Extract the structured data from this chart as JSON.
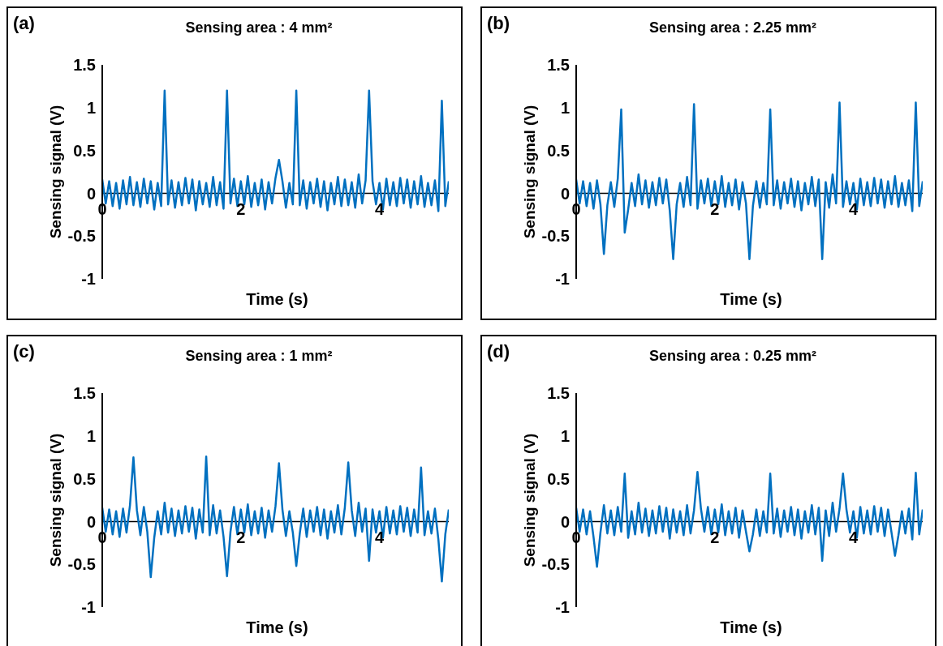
{
  "chart_data": [
    {
      "type": "line",
      "title": "Sensing area : 4 mm²",
      "xlabel": "Time (s)",
      "ylabel": "Sensing signal (V)",
      "annotations": [
        "(a)"
      ],
      "color": "#0070c0",
      "marker": "none",
      "line_style": "solid",
      "xlim": [
        0,
        5
      ],
      "xticks": [
        0,
        2,
        4
      ],
      "ylim": [
        -1,
        1.5
      ],
      "yticks": [
        -1,
        -0.5,
        0,
        0.5,
        1,
        1.5
      ],
      "x": [
        0,
        0.05,
        0.1,
        0.15,
        0.2,
        0.25,
        0.3,
        0.35,
        0.4,
        0.45,
        0.5,
        0.55,
        0.6,
        0.65,
        0.7,
        0.75,
        0.8,
        0.85,
        0.9,
        0.95,
        1,
        1.05,
        1.1,
        1.15,
        1.2,
        1.25,
        1.3,
        1.35,
        1.4,
        1.45,
        1.5,
        1.55,
        1.6,
        1.65,
        1.7,
        1.75,
        1.8,
        1.85,
        1.9,
        1.95,
        2,
        2.05,
        2.1,
        2.15,
        2.2,
        2.25,
        2.3,
        2.35,
        2.4,
        2.45,
        2.5,
        2.55,
        2.6,
        2.65,
        2.7,
        2.75,
        2.8,
        2.85,
        2.9,
        2.95,
        3,
        3.05,
        3.1,
        3.15,
        3.2,
        3.25,
        3.3,
        3.35,
        3.4,
        3.45,
        3.5,
        3.55,
        3.6,
        3.65,
        3.7,
        3.75,
        3.8,
        3.85,
        3.9,
        3.95,
        4,
        4.05,
        4.1,
        4.15,
        4.2,
        4.25,
        4.3,
        4.35,
        4.4,
        4.45,
        4.5,
        4.55,
        4.6,
        4.65,
        4.7,
        4.75,
        4.8,
        4.85,
        4.9,
        4.95,
        5
      ],
      "values": [
        0.16,
        -0.12,
        0.14,
        -0.15,
        0.12,
        -0.18,
        0.15,
        -0.13,
        0.19,
        -0.14,
        0.13,
        -0.16,
        0.17,
        -0.12,
        0.14,
        -0.19,
        0.12,
        -0.15,
        1.2,
        -0.13,
        0.15,
        -0.17,
        0.13,
        -0.14,
        0.18,
        -0.12,
        0.16,
        -0.2,
        0.14,
        -0.13,
        0.12,
        -0.16,
        0.19,
        -0.14,
        0.13,
        -0.18,
        1.2,
        -0.12,
        0.17,
        -0.15,
        0.14,
        -0.13,
        0.2,
        -0.16,
        0.12,
        -0.14,
        0.16,
        -0.19,
        0.13,
        -0.12,
        0.18,
        0.39,
        0.14,
        -0.17,
        0.12,
        -0.13,
        1.2,
        -0.14,
        0.15,
        -0.18,
        0.13,
        -0.12,
        0.17,
        -0.16,
        0.14,
        -0.2,
        0.12,
        -0.13,
        0.19,
        -0.15,
        0.16,
        -0.14,
        0.13,
        -0.17,
        0.22,
        -0.12,
        0.15,
        1.2,
        0.14,
        -0.13,
        0.12,
        -0.19,
        0.17,
        -0.14,
        0.13,
        -0.15,
        0.18,
        -0.12,
        0.16,
        -0.17,
        0.14,
        -0.13,
        0.2,
        -0.16,
        0.12,
        -0.14,
        0.15,
        -0.21,
        1.08,
        -0.15,
        0.14
      ]
    },
    {
      "type": "line",
      "title": "Sensing area : 2.25 mm²",
      "xlabel": "Time (s)",
      "ylabel": "Sensing signal (V)",
      "annotations": [
        "(b)"
      ],
      "color": "#0070c0",
      "marker": "none",
      "line_style": "solid",
      "xlim": [
        0,
        5
      ],
      "xticks": [
        0,
        2,
        4
      ],
      "ylim": [
        -1,
        1.5
      ],
      "yticks": [
        -1,
        -0.5,
        0,
        0.5,
        1,
        1.5
      ],
      "x": [
        0,
        0.05,
        0.1,
        0.15,
        0.2,
        0.25,
        0.3,
        0.35,
        0.4,
        0.45,
        0.5,
        0.55,
        0.6,
        0.65,
        0.7,
        0.75,
        0.8,
        0.85,
        0.9,
        0.95,
        1,
        1.05,
        1.1,
        1.15,
        1.2,
        1.25,
        1.3,
        1.35,
        1.4,
        1.45,
        1.5,
        1.55,
        1.6,
        1.65,
        1.7,
        1.75,
        1.8,
        1.85,
        1.9,
        1.95,
        2,
        2.05,
        2.1,
        2.15,
        2.2,
        2.25,
        2.3,
        2.35,
        2.4,
        2.45,
        2.5,
        2.55,
        2.6,
        2.65,
        2.7,
        2.75,
        2.8,
        2.85,
        2.9,
        2.95,
        3,
        3.05,
        3.1,
        3.15,
        3.2,
        3.25,
        3.3,
        3.35,
        3.4,
        3.45,
        3.5,
        3.55,
        3.6,
        3.65,
        3.7,
        3.75,
        3.8,
        3.85,
        3.9,
        3.95,
        4,
        4.05,
        4.1,
        4.15,
        4.2,
        4.25,
        4.3,
        4.35,
        4.4,
        4.45,
        4.5,
        4.55,
        4.6,
        4.65,
        4.7,
        4.75,
        4.8,
        4.85,
        4.9,
        4.95,
        5
      ],
      "values": [
        0.16,
        -0.12,
        0.14,
        -0.15,
        0.12,
        -0.18,
        0.15,
        -0.13,
        -0.71,
        -0.14,
        0.13,
        -0.16,
        0.17,
        0.98,
        -0.46,
        -0.19,
        0.12,
        -0.15,
        0.22,
        -0.13,
        0.15,
        -0.17,
        0.13,
        -0.14,
        0.18,
        -0.12,
        0.16,
        -0.2,
        -0.77,
        -0.13,
        0.12,
        -0.16,
        0.19,
        -0.14,
        1.04,
        -0.18,
        0.15,
        -0.12,
        0.17,
        -0.15,
        0.14,
        -0.13,
        0.2,
        -0.16,
        0.12,
        -0.14,
        0.16,
        -0.19,
        0.13,
        -0.12,
        -0.77,
        -0.15,
        0.14,
        -0.17,
        0.12,
        -0.13,
        0.98,
        -0.14,
        0.15,
        -0.18,
        0.13,
        -0.12,
        0.17,
        -0.16,
        0.14,
        -0.2,
        0.12,
        -0.13,
        0.19,
        -0.15,
        0.16,
        -0.77,
        0.13,
        -0.17,
        0.22,
        -0.12,
        1.06,
        -0.16,
        0.14,
        -0.13,
        0.12,
        -0.19,
        0.17,
        -0.14,
        0.13,
        -0.15,
        0.18,
        -0.12,
        0.16,
        -0.17,
        0.14,
        -0.13,
        0.2,
        -0.16,
        0.12,
        -0.14,
        0.15,
        -0.21,
        1.06,
        -0.15,
        0.14
      ]
    },
    {
      "type": "line",
      "title": "Sensing area : 1 mm²",
      "xlabel": "Time (s)",
      "ylabel": "Sensing signal (V)",
      "annotations": [
        "(c)"
      ],
      "color": "#0070c0",
      "marker": "none",
      "line_style": "solid",
      "xlim": [
        0,
        5
      ],
      "xticks": [
        0,
        2,
        4
      ],
      "ylim": [
        -1,
        1.5
      ],
      "yticks": [
        -1,
        -0.5,
        0,
        0.5,
        1,
        1.5
      ],
      "x": [
        0,
        0.05,
        0.1,
        0.15,
        0.2,
        0.25,
        0.3,
        0.35,
        0.4,
        0.45,
        0.5,
        0.55,
        0.6,
        0.65,
        0.7,
        0.75,
        0.8,
        0.85,
        0.9,
        0.95,
        1,
        1.05,
        1.1,
        1.15,
        1.2,
        1.25,
        1.3,
        1.35,
        1.4,
        1.45,
        1.5,
        1.55,
        1.6,
        1.65,
        1.7,
        1.75,
        1.8,
        1.85,
        1.9,
        1.95,
        2,
        2.05,
        2.1,
        2.15,
        2.2,
        2.25,
        2.3,
        2.35,
        2.4,
        2.45,
        2.5,
        2.55,
        2.6,
        2.65,
        2.7,
        2.75,
        2.8,
        2.85,
        2.9,
        2.95,
        3,
        3.05,
        3.1,
        3.15,
        3.2,
        3.25,
        3.3,
        3.35,
        3.4,
        3.45,
        3.5,
        3.55,
        3.6,
        3.65,
        3.7,
        3.75,
        3.8,
        3.85,
        3.9,
        3.95,
        4,
        4.05,
        4.1,
        4.15,
        4.2,
        4.25,
        4.3,
        4.35,
        4.4,
        4.45,
        4.5,
        4.55,
        4.6,
        4.65,
        4.7,
        4.75,
        4.8,
        4.85,
        4.9,
        4.95,
        5
      ],
      "values": [
        0.16,
        -0.12,
        0.14,
        -0.15,
        0.12,
        -0.18,
        0.15,
        -0.13,
        0.19,
        0.75,
        0.13,
        -0.16,
        0.17,
        -0.12,
        -0.65,
        -0.19,
        0.12,
        -0.15,
        0.22,
        -0.13,
        0.15,
        -0.17,
        0.13,
        -0.14,
        0.18,
        -0.12,
        0.16,
        -0.2,
        0.14,
        -0.13,
        0.76,
        -0.16,
        0.19,
        -0.14,
        0.13,
        -0.18,
        -0.64,
        -0.12,
        0.17,
        -0.15,
        0.14,
        -0.13,
        0.2,
        -0.16,
        0.12,
        -0.14,
        0.16,
        -0.19,
        0.13,
        -0.12,
        0.18,
        0.68,
        0.14,
        -0.17,
        0.12,
        -0.13,
        -0.52,
        -0.14,
        0.15,
        -0.18,
        0.13,
        -0.12,
        0.17,
        -0.16,
        0.14,
        -0.2,
        0.12,
        -0.13,
        0.19,
        -0.15,
        0.16,
        0.69,
        0.13,
        -0.17,
        0.22,
        -0.12,
        0.15,
        -0.46,
        0.14,
        -0.13,
        0.12,
        -0.19,
        0.17,
        -0.14,
        0.13,
        -0.15,
        0.18,
        -0.12,
        0.16,
        -0.17,
        0.14,
        -0.13,
        0.63,
        -0.16,
        0.12,
        -0.14,
        0.15,
        -0.21,
        -0.7,
        -0.15,
        0.14
      ]
    },
    {
      "type": "line",
      "title": "Sensing area : 0.25 mm²",
      "xlabel": "Time (s)",
      "ylabel": "Sensing signal (V)",
      "annotations": [
        "(d)"
      ],
      "color": "#0070c0",
      "marker": "none",
      "line_style": "solid",
      "xlim": [
        0,
        5
      ],
      "xticks": [
        0,
        2,
        4
      ],
      "ylim": [
        -1,
        1.5
      ],
      "yticks": [
        -1,
        -0.5,
        0,
        0.5,
        1,
        1.5
      ],
      "x": [
        0,
        0.05,
        0.1,
        0.15,
        0.2,
        0.25,
        0.3,
        0.35,
        0.4,
        0.45,
        0.5,
        0.55,
        0.6,
        0.65,
        0.7,
        0.75,
        0.8,
        0.85,
        0.9,
        0.95,
        1,
        1.05,
        1.1,
        1.15,
        1.2,
        1.25,
        1.3,
        1.35,
        1.4,
        1.45,
        1.5,
        1.55,
        1.6,
        1.65,
        1.7,
        1.75,
        1.8,
        1.85,
        1.9,
        1.95,
        2,
        2.05,
        2.1,
        2.15,
        2.2,
        2.25,
        2.3,
        2.35,
        2.4,
        2.45,
        2.5,
        2.55,
        2.6,
        2.65,
        2.7,
        2.75,
        2.8,
        2.85,
        2.9,
        2.95,
        3,
        3.05,
        3.1,
        3.15,
        3.2,
        3.25,
        3.3,
        3.35,
        3.4,
        3.45,
        3.5,
        3.55,
        3.6,
        3.65,
        3.7,
        3.75,
        3.8,
        3.85,
        3.9,
        3.95,
        4,
        4.05,
        4.1,
        4.15,
        4.2,
        4.25,
        4.3,
        4.35,
        4.4,
        4.45,
        4.5,
        4.55,
        4.6,
        4.65,
        4.7,
        4.75,
        4.8,
        4.85,
        4.9,
        4.95,
        5
      ],
      "values": [
        0.16,
        -0.12,
        0.14,
        -0.15,
        0.12,
        -0.18,
        -0.53,
        -0.13,
        0.19,
        -0.14,
        0.13,
        -0.16,
        0.17,
        -0.12,
        0.56,
        -0.19,
        0.12,
        -0.15,
        0.22,
        -0.13,
        0.15,
        -0.17,
        0.13,
        -0.14,
        0.18,
        -0.12,
        0.16,
        -0.2,
        0.14,
        -0.13,
        0.12,
        -0.16,
        0.19,
        -0.14,
        0.13,
        0.58,
        0.15,
        -0.12,
        0.17,
        -0.15,
        0.14,
        -0.13,
        0.2,
        -0.16,
        0.12,
        -0.14,
        0.16,
        -0.19,
        0.13,
        -0.12,
        -0.35,
        -0.15,
        0.14,
        -0.17,
        0.12,
        -0.13,
        0.56,
        -0.14,
        0.15,
        -0.18,
        0.13,
        -0.12,
        0.17,
        -0.16,
        0.14,
        -0.2,
        0.12,
        -0.13,
        0.19,
        -0.15,
        0.16,
        -0.46,
        0.13,
        -0.17,
        0.22,
        -0.12,
        0.15,
        0.56,
        0.14,
        -0.13,
        0.12,
        -0.19,
        0.17,
        -0.14,
        0.13,
        -0.15,
        0.18,
        -0.12,
        0.16,
        -0.17,
        0.14,
        -0.13,
        -0.4,
        -0.16,
        0.12,
        -0.14,
        0.15,
        -0.21,
        0.57,
        -0.15,
        0.14
      ]
    }
  ]
}
